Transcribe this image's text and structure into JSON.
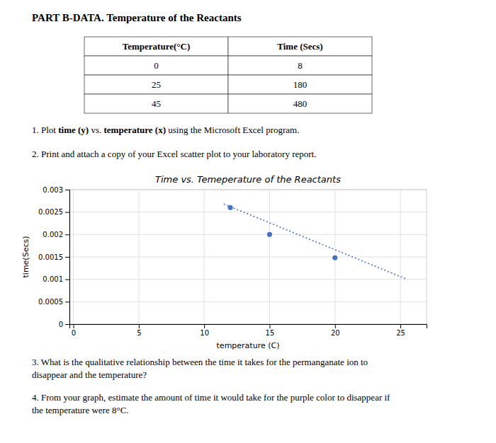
{
  "page_title": "PART B-DATA. Temperature of the Reactants",
  "table": {
    "headers": [
      "Temperature(°C)",
      "Time (Secs)"
    ],
    "rows": [
      [
        "0",
        "8"
      ],
      [
        "25",
        "180"
      ],
      [
        "45",
        "480"
      ]
    ]
  },
  "instructions": [
    [
      {
        "text": "1. Plot ",
        "bold": false
      },
      {
        "text": "time (y)",
        "bold": true
      },
      {
        "text": " vs. ",
        "bold": false
      },
      {
        "text": "temperature (x)",
        "bold": true
      },
      {
        "text": " using the Microsoft Excel program.",
        "bold": false
      }
    ],
    [
      {
        "text": "2.  Print and attach a copy of your Excel scatter plot to your laboratory report.",
        "bold": false
      }
    ]
  ],
  "questions": [
    "3.  What is the qualitative relationship between the time it takes for the permanganate ion to\ndisappear and the temperature?",
    "4.  From your graph, estimate the amount of time it would take for the purple color to disappear if\nthe temperature were 8°C."
  ],
  "chart_data": {
    "type": "scatter",
    "title": "Time vs. Temeperature of the Reactants",
    "xlabel": "temperature (C)",
    "ylabel": "time(Secs)",
    "series": [
      {
        "type": "scatter",
        "marker": "circle",
        "color": "#4472C4",
        "x": [
          12,
          15,
          20
        ],
        "values": [
          0.0026,
          0.002,
          0.00148
        ]
      },
      {
        "type": "line",
        "line_style": "dotted",
        "color": "#4472C4",
        "x": [
          11.5,
          25.5
        ],
        "values": [
          0.00268,
          0.001
        ]
      }
    ],
    "xlim": [
      -0.3,
      27
    ],
    "ylim": [
      0,
      0.003
    ],
    "xticks": [
      0,
      5,
      10,
      15,
      20,
      25
    ],
    "yticks": [
      0,
      0.0005,
      0.001,
      0.0015,
      0.002,
      0.0025,
      0.003
    ],
    "grid": true
  }
}
